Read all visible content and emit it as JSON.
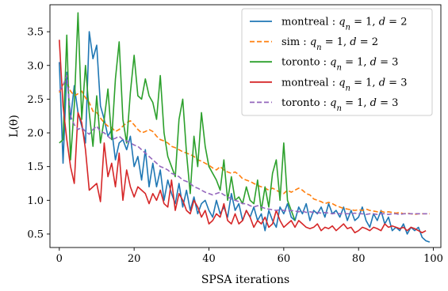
{
  "chart_data": {
    "type": "line",
    "xlabel": "SPSA iterations",
    "ylabel": "L(θ)",
    "xlim": [
      -2.5,
      102
    ],
    "ylim": [
      0.3,
      3.9
    ],
    "xticks": [
      0,
      20,
      40,
      60,
      80,
      100
    ],
    "yticks": [
      0.5,
      1.0,
      1.5,
      2.0,
      2.5,
      3.0,
      3.5
    ],
    "xtick_labels": [
      "0",
      "20",
      "40",
      "60",
      "80",
      "100"
    ],
    "ytick_labels": [
      "0.5",
      "1.0",
      "1.5",
      "2.0",
      "2.5",
      "3.0",
      "3.5"
    ],
    "grid": false,
    "legend_position": "top-right",
    "series": [
      {
        "name": "montreal : q_n = 1, d = 2",
        "legend_parts": {
          "system": "montreal",
          "qn": "1",
          "d": "2"
        },
        "color": "#1f77b4",
        "dash": "solid",
        "x": [
          0,
          1,
          2,
          3,
          4,
          5,
          6,
          7,
          8,
          9,
          10,
          11,
          12,
          13,
          14,
          15,
          16,
          17,
          18,
          19,
          20,
          21,
          22,
          23,
          24,
          25,
          26,
          27,
          28,
          29,
          30,
          31,
          32,
          33,
          34,
          35,
          36,
          37,
          38,
          39,
          40,
          41,
          42,
          43,
          44,
          45,
          46,
          47,
          48,
          49,
          50,
          51,
          52,
          53,
          54,
          55,
          56,
          57,
          58,
          59,
          60,
          61,
          62,
          63,
          64,
          65,
          66,
          67,
          68,
          69,
          70,
          71,
          72,
          73,
          74,
          75,
          76,
          77,
          78,
          79,
          80,
          81,
          82,
          83,
          84,
          85,
          86,
          87,
          88,
          89,
          90,
          91,
          92,
          93,
          94,
          95,
          96,
          97,
          98,
          99
        ],
        "y": [
          3.05,
          1.55,
          2.9,
          2.2,
          2.7,
          2.3,
          2.1,
          1.85,
          3.5,
          3.1,
          3.3,
          2.4,
          2.2,
          1.95,
          2.05,
          1.6,
          1.85,
          1.9,
          1.75,
          1.95,
          1.5,
          1.65,
          1.3,
          1.75,
          1.2,
          1.55,
          1.2,
          1.45,
          1.0,
          1.3,
          1.1,
          0.95,
          1.25,
          0.9,
          1.15,
          0.85,
          1.05,
          0.8,
          0.95,
          1.0,
          0.85,
          0.75,
          1.0,
          0.8,
          0.9,
          0.75,
          1.1,
          0.85,
          0.95,
          0.7,
          0.85,
          0.75,
          0.9,
          0.7,
          0.8,
          0.55,
          0.85,
          0.7,
          0.6,
          0.9,
          0.8,
          0.95,
          0.75,
          0.7,
          0.9,
          0.8,
          0.95,
          0.7,
          0.85,
          0.8,
          0.9,
          0.75,
          0.95,
          0.8,
          0.85,
          0.75,
          0.9,
          0.7,
          0.85,
          0.7,
          0.75,
          0.9,
          0.7,
          0.6,
          0.8,
          0.7,
          0.85,
          0.65,
          0.75,
          0.55,
          0.6,
          0.55,
          0.65,
          0.5,
          0.6,
          0.55,
          0.6,
          0.45,
          0.4,
          0.38
        ]
      },
      {
        "name": "sim : q_n = 1, d = 2",
        "legend_parts": {
          "system": "sim",
          "qn": "1",
          "d": "2"
        },
        "color": "#ff7f0e",
        "dash": "dashed",
        "x": [
          0,
          1,
          2,
          3,
          4,
          5,
          6,
          7,
          8,
          9,
          10,
          11,
          12,
          13,
          14,
          15,
          16,
          17,
          18,
          19,
          20,
          21,
          22,
          23,
          24,
          25,
          26,
          27,
          28,
          29,
          30,
          31,
          32,
          33,
          34,
          35,
          36,
          37,
          38,
          39,
          40,
          41,
          42,
          43,
          44,
          45,
          46,
          47,
          48,
          49,
          50,
          51,
          52,
          53,
          54,
          55,
          56,
          57,
          58,
          59,
          60,
          61,
          62,
          63,
          64,
          65,
          66,
          67,
          68,
          69,
          70,
          71,
          72,
          73,
          74,
          75,
          76,
          77,
          78,
          79,
          80,
          81,
          82,
          83,
          84,
          85,
          86,
          87,
          88,
          89,
          90,
          91,
          92,
          93,
          94,
          95,
          96,
          97,
          98,
          99
        ],
        "y": [
          2.6,
          2.72,
          2.75,
          2.62,
          2.55,
          2.58,
          2.62,
          2.52,
          2.45,
          2.32,
          2.3,
          2.22,
          2.15,
          2.1,
          2.08,
          2.02,
          2.05,
          2.1,
          2.15,
          2.18,
          2.12,
          2.05,
          2.0,
          2.02,
          2.05,
          2.02,
          1.95,
          1.9,
          1.88,
          1.85,
          1.8,
          1.78,
          1.75,
          1.72,
          1.7,
          1.68,
          1.65,
          1.6,
          1.58,
          1.55,
          1.52,
          1.48,
          1.45,
          1.5,
          1.45,
          1.42,
          1.4,
          1.42,
          1.38,
          1.32,
          1.3,
          1.28,
          1.25,
          1.22,
          1.2,
          1.18,
          1.15,
          1.18,
          1.15,
          1.12,
          1.1,
          1.15,
          1.12,
          1.15,
          1.18,
          1.15,
          1.1,
          1.08,
          1.02,
          1.0,
          0.98,
          0.95,
          0.97,
          0.95,
          0.92,
          0.9,
          0.88,
          0.87,
          0.86,
          0.85,
          0.86,
          0.85,
          0.87,
          0.85,
          0.84,
          0.83,
          0.84,
          0.82,
          0.83,
          0.82,
          0.81,
          0.82,
          0.8,
          0.81,
          0.8,
          0.79,
          0.8,
          0.8,
          0.8,
          0.8
        ]
      },
      {
        "name": "toronto : q_n = 1, d = 3",
        "legend_parts": {
          "system": "toronto",
          "qn": "1",
          "d": "3"
        },
        "color": "#2ca02c",
        "dash": "solid",
        "x": [
          0,
          1,
          2,
          3,
          4,
          5,
          6,
          7,
          8,
          9,
          10,
          11,
          12,
          13,
          14,
          15,
          16,
          17,
          18,
          19,
          20,
          21,
          22,
          23,
          24,
          25,
          26,
          27,
          28,
          29,
          30,
          31,
          32,
          33,
          34,
          35,
          36,
          37,
          38,
          39,
          40,
          41,
          42,
          43,
          44,
          45,
          46,
          47,
          48,
          49,
          50,
          51,
          52,
          53,
          54,
          55,
          56,
          57,
          58,
          59,
          60,
          61,
          62,
          63
        ],
        "y": [
          1.85,
          1.9,
          3.45,
          1.6,
          2.4,
          3.78,
          2.2,
          3.0,
          2.3,
          1.8,
          2.55,
          1.85,
          2.2,
          2.65,
          1.9,
          2.8,
          3.35,
          2.2,
          1.85,
          2.6,
          3.15,
          2.55,
          2.5,
          2.8,
          2.55,
          2.45,
          2.2,
          2.85,
          2.0,
          1.65,
          1.5,
          1.35,
          2.2,
          2.5,
          1.7,
          1.1,
          1.95,
          1.5,
          2.3,
          1.8,
          1.5,
          1.4,
          1.3,
          1.15,
          1.6,
          1.0,
          1.35,
          1.0,
          1.05,
          0.95,
          1.2,
          1.0,
          0.95,
          1.3,
          0.85,
          1.2,
          0.9,
          1.4,
          1.6,
          1.0,
          1.85,
          1.0,
          0.85,
          0.7
        ]
      },
      {
        "name": "montreal : q_n = 1, d = 3",
        "legend_parts": {
          "system": "montreal",
          "qn": "1",
          "d": "3"
        },
        "color": "#d62728",
        "dash": "solid",
        "x": [
          0,
          1,
          2,
          3,
          4,
          5,
          6,
          7,
          8,
          9,
          10,
          11,
          12,
          13,
          14,
          15,
          16,
          17,
          18,
          19,
          20,
          21,
          22,
          23,
          24,
          25,
          26,
          27,
          28,
          29,
          30,
          31,
          32,
          33,
          34,
          35,
          36,
          37,
          38,
          39,
          40,
          41,
          42,
          43,
          44,
          45,
          46,
          47,
          48,
          49,
          50,
          51,
          52,
          53,
          54,
          55,
          56,
          57,
          58,
          59,
          60,
          61,
          62,
          63,
          64,
          65,
          66,
          67,
          68,
          69,
          70,
          71,
          72,
          73,
          74,
          75,
          76,
          77,
          78,
          79,
          80,
          81,
          82,
          83,
          84,
          85,
          86,
          87,
          88,
          89,
          90,
          91,
          92,
          93,
          94,
          95,
          96,
          97,
          98
        ],
        "y": [
          3.38,
          2.4,
          1.9,
          1.5,
          1.25,
          2.3,
          2.15,
          1.75,
          1.15,
          1.2,
          1.25,
          0.98,
          1.85,
          1.35,
          1.55,
          1.2,
          1.7,
          1.0,
          1.45,
          1.2,
          1.05,
          1.2,
          1.15,
          1.1,
          0.95,
          1.1,
          1.0,
          1.15,
          0.95,
          0.9,
          1.3,
          0.85,
          1.1,
          1.0,
          0.85,
          0.8,
          1.0,
          0.9,
          0.75,
          0.85,
          0.65,
          0.7,
          0.8,
          0.75,
          0.95,
          0.7,
          0.65,
          0.8,
          0.65,
          0.7,
          0.85,
          0.75,
          0.6,
          0.7,
          0.65,
          0.75,
          0.6,
          0.65,
          0.85,
          0.7,
          0.6,
          0.65,
          0.7,
          0.6,
          0.7,
          0.65,
          0.6,
          0.58,
          0.6,
          0.65,
          0.55,
          0.6,
          0.58,
          0.62,
          0.55,
          0.6,
          0.65,
          0.58,
          0.6,
          0.52,
          0.55,
          0.6,
          0.58,
          0.55,
          0.6,
          0.58,
          0.55,
          0.65,
          0.6,
          0.62,
          0.6,
          0.58,
          0.6,
          0.55,
          0.6,
          0.58,
          0.55,
          0.52,
          0.55
        ]
      },
      {
        "name": "toronto : q_n = 1, d = 3",
        "legend_parts": {
          "system": "toronto",
          "qn": "1",
          "d": "3"
        },
        "color": "#9467bd",
        "dash": "dashed",
        "x": [
          0,
          1,
          2,
          3,
          4,
          5,
          6,
          7,
          8,
          9,
          10,
          11,
          12,
          13,
          14,
          15,
          16,
          17,
          18,
          19,
          20,
          21,
          22,
          23,
          24,
          25,
          26,
          27,
          28,
          29,
          30,
          31,
          32,
          33,
          34,
          35,
          36,
          37,
          38,
          39,
          40,
          41,
          42,
          43,
          44,
          45,
          46,
          47,
          48,
          49,
          50,
          51,
          52,
          53,
          54,
          55,
          56,
          57,
          58,
          59,
          60,
          61,
          62,
          63,
          64,
          65,
          66,
          67,
          68,
          69,
          70,
          71,
          72,
          73,
          74,
          75,
          76,
          77,
          78,
          79,
          80,
          81,
          82,
          83,
          84,
          85,
          86,
          87,
          88,
          89,
          90,
          91,
          92,
          93,
          94,
          95,
          96,
          97,
          98,
          99
        ],
        "y": [
          2.62,
          2.7,
          2.85,
          2.25,
          2.12,
          2.05,
          2.08,
          2.02,
          1.98,
          2.05,
          2.1,
          2.02,
          2.0,
          1.95,
          1.9,
          1.92,
          1.95,
          1.9,
          1.88,
          1.85,
          1.82,
          1.8,
          1.75,
          1.7,
          1.65,
          1.6,
          1.55,
          1.5,
          1.48,
          1.45,
          1.4,
          1.38,
          1.35,
          1.3,
          1.28,
          1.25,
          1.2,
          1.18,
          1.15,
          1.12,
          1.1,
          1.08,
          1.1,
          1.12,
          1.08,
          1.05,
          1.02,
          1.0,
          0.98,
          0.95,
          0.95,
          0.92,
          0.9,
          0.92,
          0.9,
          0.88,
          0.87,
          0.86,
          0.85,
          0.86,
          0.85,
          0.84,
          0.85,
          0.84,
          0.83,
          0.84,
          0.82,
          0.83,
          0.82,
          0.82,
          0.81,
          0.82,
          0.81,
          0.8,
          0.81,
          0.8,
          0.81,
          0.8,
          0.8,
          0.81,
          0.8,
          0.8,
          0.79,
          0.8,
          0.8,
          0.79,
          0.8,
          0.8,
          0.79,
          0.8,
          0.8,
          0.79,
          0.8,
          0.8,
          0.8,
          0.8,
          0.8,
          0.8,
          0.8,
          0.8
        ]
      }
    ]
  }
}
